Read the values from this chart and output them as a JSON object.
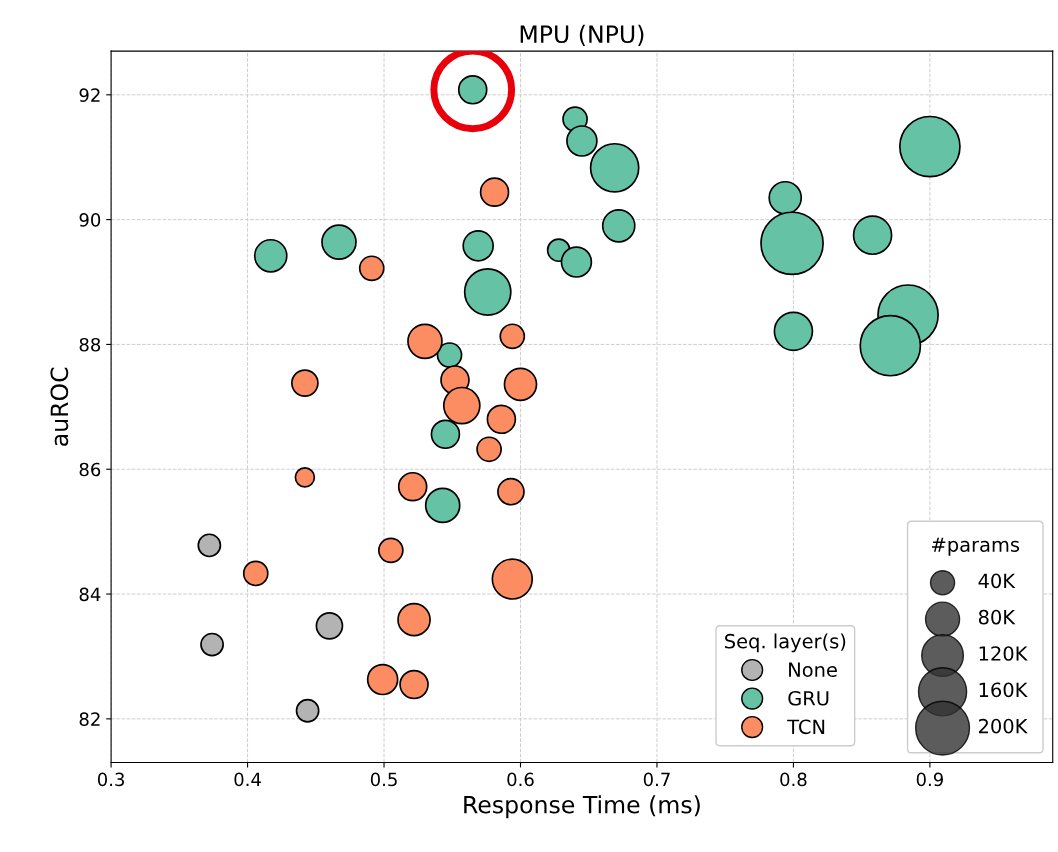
{
  "chart_data": {
    "type": "bubble",
    "title": "MPU (NPU)",
    "xlabel": "Response Time (ms)",
    "ylabel": "auROC",
    "legend_title": "Seq. layer(s)",
    "annotations": [
      "#params"
    ],
    "xlim": [
      0.3,
      0.99
    ],
    "ylim": [
      81.3,
      92.7
    ],
    "xticks": [
      0.3,
      0.4,
      0.5,
      0.6,
      0.7,
      0.8,
      0.9
    ],
    "yticks": [
      82,
      84,
      86,
      88,
      90,
      92
    ],
    "grid": true,
    "legend": "bottom right",
    "size_legend": [
      {
        "value": 40,
        "label": "40K"
      },
      {
        "value": 80,
        "label": "80K"
      },
      {
        "value": 120,
        "label": "120K"
      },
      {
        "value": 160,
        "label": "160K"
      },
      {
        "value": 200,
        "label": "200K"
      }
    ],
    "series": [
      {
        "name": "None",
        "color": "#b3b3b3",
        "x": [
          0.372,
          0.374,
          0.46,
          0.444
        ],
        "values": [
          84.78,
          83.19,
          83.49,
          82.13
        ],
        "sizes": [
          34,
          34,
          47,
          34
        ]
      },
      {
        "name": "GRU",
        "color": "#66c2a5",
        "x": [
          0.565,
          0.64,
          0.645,
          0.669,
          0.9,
          0.794,
          0.672,
          0.417,
          0.467,
          0.569,
          0.628,
          0.641,
          0.576,
          0.799,
          0.858,
          0.8,
          0.884,
          0.871,
          0.548,
          0.545,
          0.543
        ],
        "values": [
          92.08,
          91.61,
          91.26,
          90.83,
          91.17,
          90.35,
          89.9,
          89.42,
          89.64,
          89.58,
          89.51,
          89.32,
          88.84,
          89.62,
          89.75,
          88.21,
          88.47,
          87.98,
          87.83,
          86.56,
          85.42
        ],
        "sizes": [
          54,
          40,
          62,
          160,
          250,
          71,
          71,
          71,
          80,
          62,
          34,
          62,
          147,
          267,
          100,
          100,
          250,
          250,
          40,
          54,
          80
        ]
      },
      {
        "name": "TCN",
        "color": "#fc8d62",
        "x": [
          0.581,
          0.491,
          0.53,
          0.594,
          0.442,
          0.552,
          0.557,
          0.6,
          0.586,
          0.577,
          0.442,
          0.521,
          0.593,
          0.505,
          0.406,
          0.594,
          0.522,
          0.499,
          0.522
        ],
        "values": [
          90.44,
          89.22,
          88.05,
          88.13,
          87.38,
          87.43,
          87.02,
          87.36,
          86.8,
          86.32,
          85.87,
          85.72,
          85.64,
          84.7,
          84.33,
          84.24,
          83.59,
          82.63,
          82.55
        ],
        "sizes": [
          54,
          40,
          80,
          40,
          47,
          54,
          90,
          71,
          54,
          40,
          25,
          54,
          47,
          40,
          40,
          110,
          71,
          62,
          54
        ]
      }
    ]
  }
}
